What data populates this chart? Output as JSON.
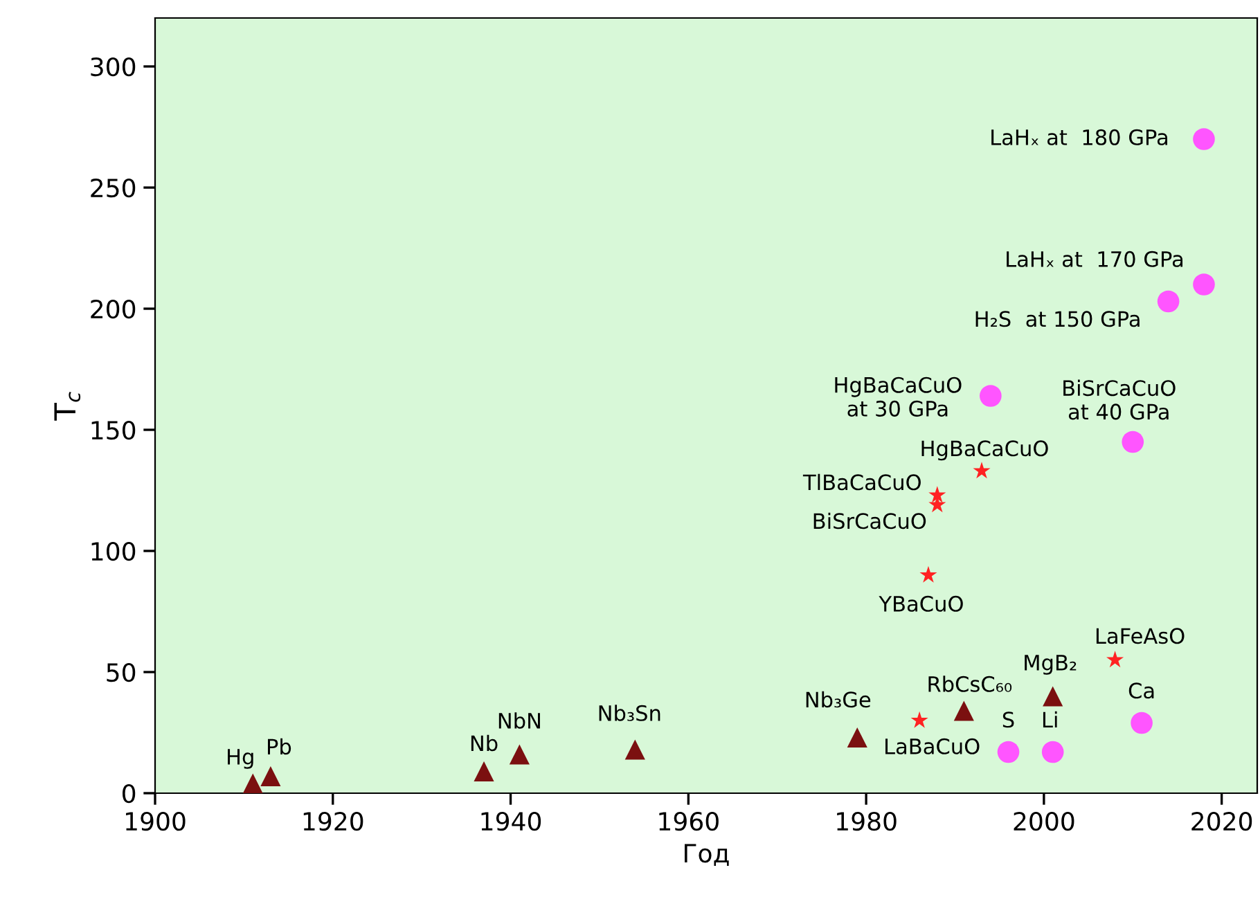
{
  "chart_data": {
    "type": "scatter",
    "xlabel": "Год",
    "ylabel": "T$_{c}$",
    "xlim": [
      1900,
      2024
    ],
    "xticks": [
      1900,
      1920,
      1940,
      1960,
      1980,
      2000,
      2020
    ],
    "ylim": [
      0,
      320
    ],
    "yticks": [
      0,
      50,
      100,
      150,
      200,
      250,
      300
    ],
    "grid": false,
    "legend": false,
    "series": [
      {
        "color": "#7b1010",
        "marker": "triangle",
        "x": [
          1911,
          1913,
          1937,
          1941,
          1954,
          1979,
          1991,
          2001
        ],
        "values": [
          4,
          7,
          9,
          16,
          18,
          23,
          34,
          40
        ]
      },
      {
        "color": "#ff2222",
        "marker": "star",
        "x": [
          1986,
          2008,
          1987,
          1988,
          1988,
          1993
        ],
        "values": [
          30,
          55,
          90,
          119,
          123,
          133
        ]
      },
      {
        "color": "#ff55ff",
        "marker": "circle",
        "x": [
          1996,
          2001,
          2011,
          1994,
          2010,
          2014,
          2018,
          2018
        ],
        "values": [
          17,
          17,
          29,
          164,
          145,
          203,
          210,
          270
        ]
      }
    ],
    "annotations": [
      {
        "text": "Hg",
        "x": 1911,
        "y": 4
      },
      {
        "text": "Pb",
        "x": 1913,
        "y": 7
      },
      {
        "text": "Nb",
        "x": 1937,
        "y": 9
      },
      {
        "text": "NbN",
        "x": 1941,
        "y": 16
      },
      {
        "text": "Nb₃Sn",
        "x": 1954,
        "y": 18
      },
      {
        "text": "Nb₃Ge",
        "x": 1979,
        "y": 23
      },
      {
        "text": "LaBaCuO",
        "x": 1986,
        "y": 30
      },
      {
        "text": "RbCsC₆₀",
        "x": 1991,
        "y": 34
      },
      {
        "text": "MgB₂",
        "x": 2001,
        "y": 40
      },
      {
        "text": "LaFeAsO",
        "x": 2008,
        "y": 55
      },
      {
        "text": "S",
        "x": 1996,
        "y": 17
      },
      {
        "text": "Li",
        "x": 2001,
        "y": 17
      },
      {
        "text": "Ca",
        "x": 2011,
        "y": 29
      },
      {
        "text": "YBaCuO",
        "x": 1987,
        "y": 90
      },
      {
        "text": "BiSrCaCuO",
        "x": 1988,
        "y": 119
      },
      {
        "text": "TlBaCaCuO",
        "x": 1988,
        "y": 123
      },
      {
        "text": "HgBaCaCuO",
        "x": 1993,
        "y": 133
      },
      {
        "text": "HgBaCaCuO\nat 30 GPa",
        "x": 1994,
        "y": 164
      },
      {
        "text": "BiSrCaCuO\nat 40 GPa",
        "x": 2010,
        "y": 145
      },
      {
        "text": "H₂S  at 150 GPa",
        "x": 2014,
        "y": 203
      },
      {
        "text": "LaHₓ at  170 GPa",
        "x": 2018,
        "y": 210
      },
      {
        "text": "LaHₓ at  180 GPa",
        "x": 2018,
        "y": 270
      }
    ]
  }
}
